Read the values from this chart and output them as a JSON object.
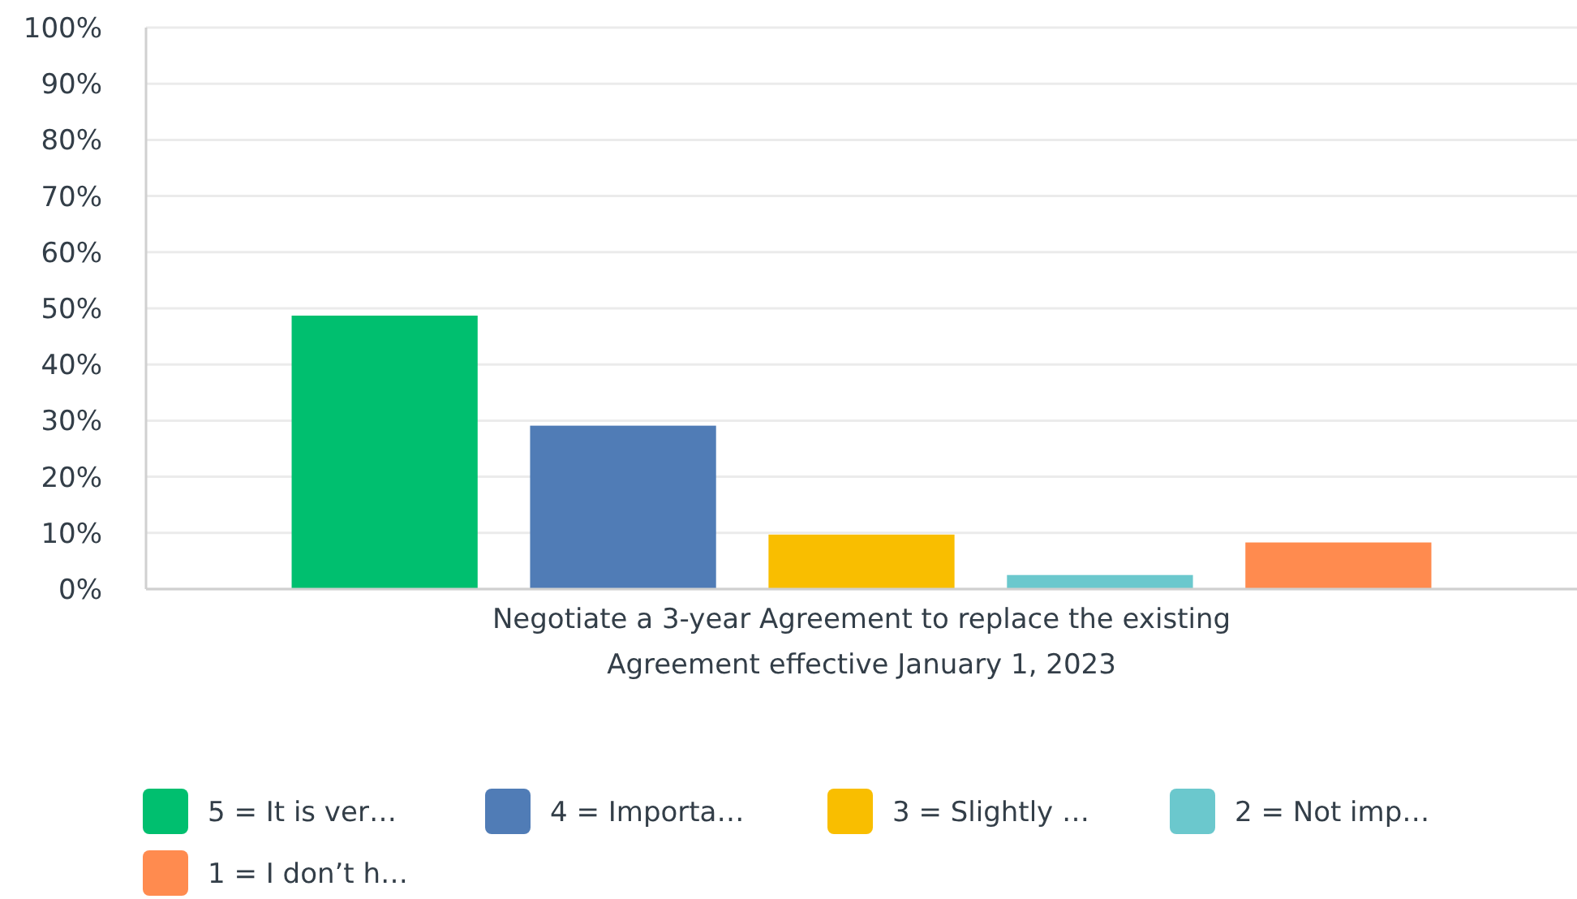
{
  "chart_data": {
    "type": "bar",
    "categories": [
      "Negotiate a 3-year Agreement to replace the existing Agreement effective January 1, 2023"
    ],
    "series": [
      {
        "name": "5 = It is ver…",
        "color": "#00bf6f",
        "values": [
          48.7
        ]
      },
      {
        "name": "4 = Importa…",
        "color": "#507cb6",
        "values": [
          29.1
        ]
      },
      {
        "name": "3 = Slightly …",
        "color": "#f9be00",
        "values": [
          9.7
        ]
      },
      {
        "name": "2 = Not imp…",
        "color": "#6bc8cd",
        "values": [
          2.5
        ]
      },
      {
        "name": "1 = I don’t h…",
        "color": "#ff8b4f",
        "values": [
          8.3
        ]
      }
    ],
    "ylim": [
      0,
      100
    ],
    "yticks": [
      {
        "value": 0,
        "label": "0%"
      },
      {
        "value": 10,
        "label": "10%"
      },
      {
        "value": 20,
        "label": "20%"
      },
      {
        "value": 30,
        "label": "30%"
      },
      {
        "value": 40,
        "label": "40%"
      },
      {
        "value": 50,
        "label": "50%"
      },
      {
        "value": 60,
        "label": "60%"
      },
      {
        "value": 70,
        "label": "70%"
      },
      {
        "value": 80,
        "label": "80%"
      },
      {
        "value": 90,
        "label": "90%"
      },
      {
        "value": 100,
        "label": "100%"
      }
    ],
    "grid": "y",
    "legend": "bottom"
  }
}
